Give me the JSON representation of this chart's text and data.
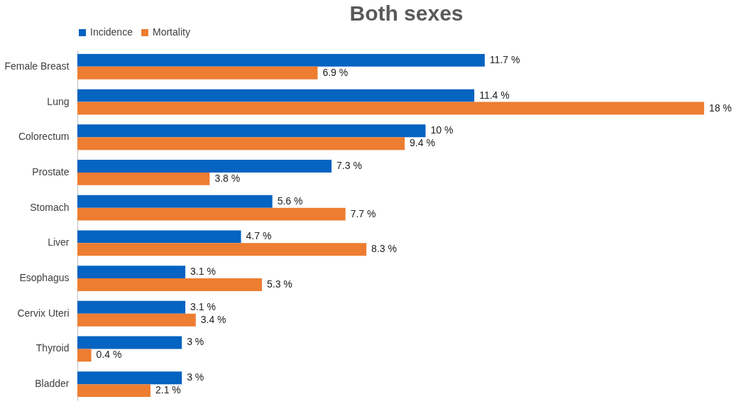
{
  "chart_data": {
    "type": "bar",
    "orientation": "horizontal",
    "title": "Both sexes",
    "categories": [
      "Female Breast",
      "Lung",
      "Colorectum",
      "Prostate",
      "Stomach",
      "Liver",
      "Esophagus",
      "Cervix Uteri",
      "Thyroid",
      "Bladder"
    ],
    "series": [
      {
        "name": "Incidence",
        "color": "#0563c1",
        "values": [
          11.7,
          11.4,
          10,
          7.3,
          5.6,
          4.7,
          3.1,
          3.1,
          3,
          3
        ],
        "value_labels": [
          "11.7 %",
          "11.4 %",
          "10 %",
          "7.3 %",
          "5.6 %",
          "4.7 %",
          "3.1 %",
          "3.1 %",
          "3 %",
          "3 %"
        ]
      },
      {
        "name": "Mortality",
        "color": "#ed7d31",
        "values": [
          6.9,
          18,
          9.4,
          3.8,
          7.7,
          8.3,
          5.3,
          3.4,
          0.4,
          2.1
        ],
        "value_labels": [
          "6.9 %",
          "18 %",
          "9.4 %",
          "3.8 %",
          "7.7 %",
          "8.3 %",
          "5.3 %",
          "3.4 %",
          "0.4 %",
          "2.1 %"
        ]
      }
    ],
    "legend": "top"
  }
}
